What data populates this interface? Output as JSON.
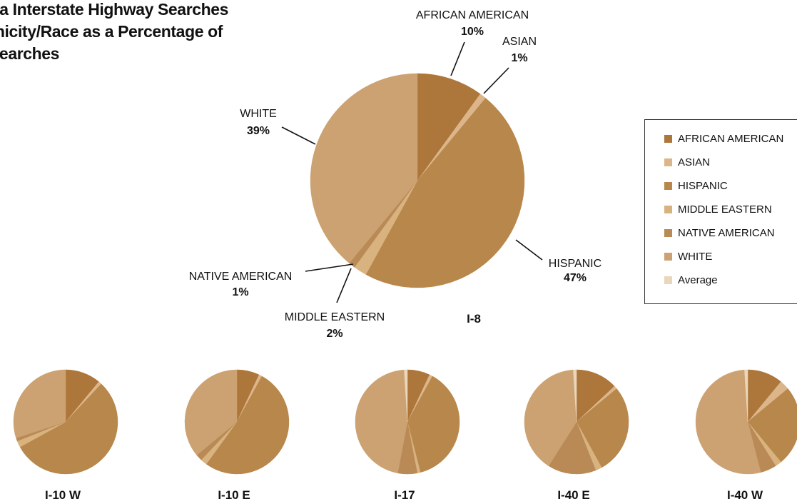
{
  "title_lines": [
    "ona Interstate Highway Searches",
    "thnicity/Race as a Percentage of",
    "l Searches"
  ],
  "colors": {
    "AFRICAN AMERICAN": "#ad763a",
    "ASIAN": "#dcb68a",
    "HISPANIC": "#b8874b",
    "MIDDLE EASTERN": "#d9b37f",
    "NATIVE AMERICAN": "#b98a55",
    "WHITE": "#cca272",
    "Average": "#ead6bb"
  },
  "legend": {
    "items": [
      "AFRICAN AMERICAN",
      "ASIAN",
      "HISPANIC",
      "MIDDLE EASTERN",
      "NATIVE AMERICAN",
      "WHITE",
      "Average"
    ]
  },
  "chart_data": [
    {
      "type": "pie",
      "title": "I-8",
      "slices": [
        {
          "label": "AFRICAN AMERICAN",
          "value": 10
        },
        {
          "label": "ASIAN",
          "value": 1
        },
        {
          "label": "HISPANIC",
          "value": 47
        },
        {
          "label": "MIDDLE EASTERN",
          "value": 2
        },
        {
          "label": "NATIVE AMERICAN",
          "value": 1
        },
        {
          "label": "WHITE",
          "value": 39
        }
      ],
      "data_labels": [
        {
          "label": "AFRICAN AMERICAN",
          "text": "10%"
        },
        {
          "label": "ASIAN",
          "text": "1%"
        },
        {
          "label": "HISPANIC",
          "text": "47%"
        },
        {
          "label": "MIDDLE EASTERN",
          "text": "2%"
        },
        {
          "label": "NATIVE AMERICAN",
          "text": "1%"
        },
        {
          "label": "WHITE",
          "text": "39%"
        }
      ]
    },
    {
      "type": "pie",
      "title": "I-10 W",
      "slices": [
        {
          "label": "AFRICAN AMERICAN",
          "value": 11
        },
        {
          "label": "ASIAN",
          "value": 1
        },
        {
          "label": "HISPANIC",
          "value": 55
        },
        {
          "label": "MIDDLE EASTERN",
          "value": 2
        },
        {
          "label": "NATIVE AMERICAN",
          "value": 1
        },
        {
          "label": "WHITE",
          "value": 30
        }
      ]
    },
    {
      "type": "pie",
      "title": "I-10 E",
      "slices": [
        {
          "label": "AFRICAN AMERICAN",
          "value": 7
        },
        {
          "label": "ASIAN",
          "value": 1
        },
        {
          "label": "HISPANIC",
          "value": 52
        },
        {
          "label": "MIDDLE EASTERN",
          "value": 2
        },
        {
          "label": "NATIVE AMERICAN",
          "value": 2
        },
        {
          "label": "WHITE",
          "value": 36
        }
      ]
    },
    {
      "type": "pie",
      "title": "I-17",
      "slices": [
        {
          "label": "AFRICAN AMERICAN",
          "value": 7
        },
        {
          "label": "ASIAN",
          "value": 1
        },
        {
          "label": "HISPANIC",
          "value": 38
        },
        {
          "label": "MIDDLE EASTERN",
          "value": 1
        },
        {
          "label": "NATIVE AMERICAN",
          "value": 6
        },
        {
          "label": "WHITE",
          "value": 46
        },
        {
          "label": "Average",
          "value": 1
        }
      ]
    },
    {
      "type": "pie",
      "title": "I-40 E",
      "slices": [
        {
          "label": "AFRICAN AMERICAN",
          "value": 13
        },
        {
          "label": "ASIAN",
          "value": 1
        },
        {
          "label": "HISPANIC",
          "value": 28
        },
        {
          "label": "MIDDLE EASTERN",
          "value": 2
        },
        {
          "label": "NATIVE AMERICAN",
          "value": 15
        },
        {
          "label": "WHITE",
          "value": 40
        },
        {
          "label": "Average",
          "value": 1
        }
      ]
    },
    {
      "type": "pie",
      "title": "I-40 W",
      "slices": [
        {
          "label": "AFRICAN AMERICAN",
          "value": 11
        },
        {
          "label": "ASIAN",
          "value": 3
        },
        {
          "label": "HISPANIC",
          "value": 25
        },
        {
          "label": "MIDDLE EASTERN",
          "value": 2
        },
        {
          "label": "NATIVE AMERICAN",
          "value": 5
        },
        {
          "label": "WHITE",
          "value": 53
        },
        {
          "label": "Average",
          "value": 1
        }
      ]
    }
  ]
}
